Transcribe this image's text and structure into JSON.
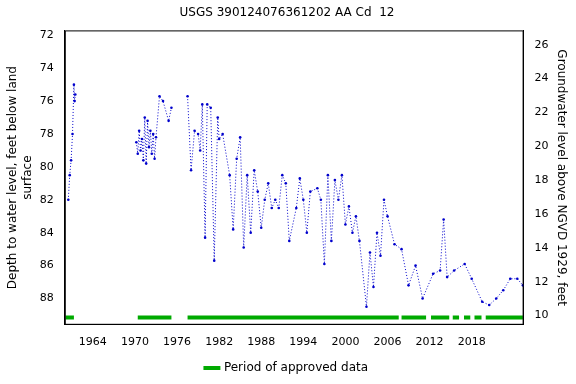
{
  "chart_data": {
    "type": "line",
    "title": "USGS 390124076361202 AA Cd  12",
    "y_label": [
      "Depth to water level, feet below land",
      "surface"
    ],
    "y2_label": "Groundwater level above NGVD 1929, feet",
    "xlim": [
      1960,
      2025.4
    ],
    "xticks": [
      1964,
      1970,
      1976,
      1982,
      1988,
      1994,
      2000,
      2006,
      2012,
      2018
    ],
    "ylim": [
      89.6,
      71.7
    ],
    "yticks": [
      72,
      74,
      76,
      78,
      80,
      82,
      84,
      86,
      88
    ],
    "y2lim": [
      9.45,
      26.85
    ],
    "y2ticks": [
      10,
      12,
      14,
      16,
      18,
      20,
      22,
      24,
      26
    ],
    "grid": false,
    "legend": "bottom",
    "x": [
      1960.5,
      1960.7,
      1960.9,
      1961.1,
      1961.3,
      1961.4,
      1961.5,
      1966,
      1970.2,
      1970.4,
      1970.6,
      1970.8,
      1971.0,
      1971.2,
      1971.4,
      1971.6,
      1971.8,
      1972.0,
      1972.2,
      1972.4,
      1972.6,
      1972.8,
      1973.0,
      1973.5,
      1974.0,
      1974.8,
      1975.2,
      1976.3,
      1977.5,
      1978.0,
      1978.5,
      1979.0,
      1979.3,
      1979.6,
      1980.0,
      1980.3,
      1980.8,
      1981.3,
      1981.8,
      1982.0,
      1982.5,
      1983.5,
      1984.0,
      1984.5,
      1985.0,
      1985.5,
      1986.0,
      1986.5,
      1987.0,
      1987.5,
      1988.0,
      1988.5,
      1989.0,
      1989.5,
      1990.0,
      1990.5,
      1991.0,
      1991.5,
      1992.0,
      1993.0,
      1993.5,
      1994.0,
      1994.5,
      1995.0,
      1996.0,
      1996.5,
      1997.0,
      1997.5,
      1998.0,
      1998.5,
      1999.0,
      1999.5,
      2000.0,
      2000.5,
      2001.0,
      2001.5,
      2002.0,
      2003.0,
      2003.5,
      2004.0,
      2004.5,
      2005.0,
      2005.5,
      2006.0,
      2007.0,
      2008.0,
      2009.0,
      2010.0,
      2011.0,
      2012.5,
      2013.5,
      2014.0,
      2014.5,
      2015.5,
      2017.0,
      2018.0,
      2019.5,
      2020.5,
      2021.5,
      2022.5,
      2023.5,
      2024.5,
      2025.3
    ],
    "series": [
      {
        "color": "#0000cc",
        "marker": "circle",
        "line_style": "dotted",
        "values": [
          82.0,
          80.5,
          79.6,
          78.0,
          75.0,
          76.0,
          75.6,
          null,
          78.5,
          79.2,
          77.8,
          79.0,
          78.3,
          79.6,
          77.0,
          79.8,
          77.2,
          78.8,
          77.8,
          79.2,
          78.0,
          79.5,
          78.2,
          75.7,
          76.0,
          77.2,
          76.4,
          null,
          75.7,
          80.2,
          77.8,
          78.0,
          79.0,
          76.2,
          84.3,
          76.2,
          76.4,
          85.7,
          77.0,
          78.3,
          78.0,
          80.5,
          83.8,
          79.5,
          78.2,
          84.9,
          80.5,
          84.0,
          80.2,
          81.5,
          83.7,
          82.0,
          81.0,
          82.5,
          82.0,
          82.5,
          80.5,
          81.0,
          84.5,
          82.5,
          80.7,
          82.0,
          84.0,
          81.5,
          81.3,
          82.0,
          85.9,
          80.5,
          84.5,
          80.8,
          82.0,
          80.5,
          83.5,
          82.4,
          84.0,
          83.0,
          84.5,
          88.5,
          85.2,
          87.3,
          84.0,
          85.4,
          82.0,
          83.0,
          84.7,
          85.0,
          87.2,
          86.0,
          88.0,
          86.5,
          86.3,
          83.2,
          86.7,
          86.3,
          85.9,
          86.8,
          88.2,
          88.4,
          88.0,
          87.5,
          86.8,
          86.8,
          87.2
        ]
      }
    ],
    "approved_periods": {
      "name": "Period of approved data",
      "color": "#00aa00",
      "periods": [
        [
          1960.1,
          1961.3
        ],
        [
          1970.4,
          1975.2
        ],
        [
          1977.5,
          2007.6
        ],
        [
          2008.0,
          2011.5
        ],
        [
          2012.2,
          2014.8
        ],
        [
          2015.3,
          2016.2
        ],
        [
          2016.9,
          2017.8
        ],
        [
          2018.4,
          2019.4
        ],
        [
          2020.0,
          2025.3
        ]
      ]
    }
  }
}
